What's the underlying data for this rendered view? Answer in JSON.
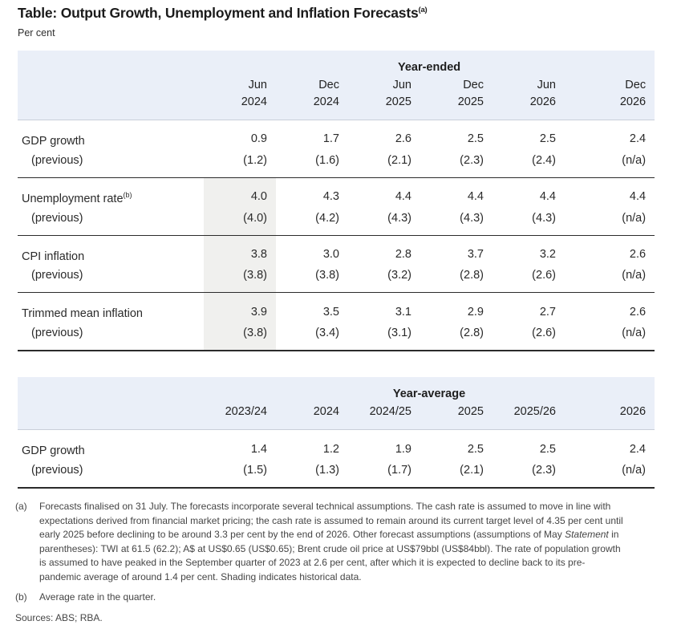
{
  "title": {
    "text": "Table: Output Growth, Unemployment and Inflation Forecasts",
    "superscript": "(a)"
  },
  "subtitle": "Per cent",
  "colors": {
    "header_bg": "#eaeff8",
    "shading": "#f0f0ee",
    "rule": "#2b2b2b"
  },
  "table_year_ended": {
    "group_header": "Year-ended",
    "previous_label": "(previous)",
    "columns": [
      {
        "month": "Jun",
        "year": "2024"
      },
      {
        "month": "Dec",
        "year": "2024"
      },
      {
        "month": "Jun",
        "year": "2025"
      },
      {
        "month": "Dec",
        "year": "2025"
      },
      {
        "month": "Jun",
        "year": "2026"
      },
      {
        "month": "Dec",
        "year": "2026"
      }
    ],
    "row_groups": [
      {
        "label": "GDP growth",
        "sup": "",
        "shaded_first": false,
        "values": [
          "0.9",
          "1.7",
          "2.6",
          "2.5",
          "2.5",
          "2.4"
        ],
        "previous": [
          "(1.2)",
          "(1.6)",
          "(2.1)",
          "(2.3)",
          "(2.4)",
          "(n/a)"
        ]
      },
      {
        "label": "Unemployment rate",
        "sup": "(b)",
        "shaded_first": true,
        "values": [
          "4.0",
          "4.3",
          "4.4",
          "4.4",
          "4.4",
          "4.4"
        ],
        "previous": [
          "(4.0)",
          "(4.2)",
          "(4.3)",
          "(4.3)",
          "(4.3)",
          "(n/a)"
        ]
      },
      {
        "label": "CPI inflation",
        "sup": "",
        "shaded_first": true,
        "values": [
          "3.8",
          "3.0",
          "2.8",
          "3.7",
          "3.2",
          "2.6"
        ],
        "previous": [
          "(3.8)",
          "(3.8)",
          "(3.2)",
          "(2.8)",
          "(2.6)",
          "(n/a)"
        ]
      },
      {
        "label": "Trimmed mean inflation",
        "sup": "",
        "shaded_first": true,
        "values": [
          "3.9",
          "3.5",
          "3.1",
          "2.9",
          "2.7",
          "2.6"
        ],
        "previous": [
          "(3.8)",
          "(3.4)",
          "(3.1)",
          "(2.8)",
          "(2.6)",
          "(n/a)"
        ]
      }
    ]
  },
  "table_year_average": {
    "group_header": "Year-average",
    "previous_label": "(previous)",
    "columns": [
      "2023/24",
      "2024",
      "2024/25",
      "2025",
      "2025/26",
      "2026"
    ],
    "row_groups": [
      {
        "label": "GDP growth",
        "sup": "",
        "shaded_first": false,
        "values": [
          "1.4",
          "1.2",
          "1.9",
          "2.5",
          "2.5",
          "2.4"
        ],
        "previous": [
          "(1.5)",
          "(1.3)",
          "(1.7)",
          "(2.1)",
          "(2.3)",
          "(n/a)"
        ]
      }
    ]
  },
  "footnotes": {
    "a": {
      "marker": "(a)",
      "text_before_italic": "Forecasts finalised on 31 July. The forecasts incorporate several technical assumptions. The cash rate is assumed to move in line with expectations derived from financial market pricing; the cash rate is assumed to remain around its current target level of 4.35 per cent until early 2025 before declining to be around 3.3 per cent by the end of 2026. Other forecast assumptions (assumptions of May ",
      "italic": "Statement",
      "text_after_italic": " in parentheses): TWI at 61.5 (62.2); A$ at US$0.65 (US$0.65); Brent crude oil price at US$79bbl (US$84bbl). The rate of population growth is assumed to have peaked in the September quarter of 2023 at 2.6 per cent, after which it is expected to decline back to its pre-pandemic average of around 1.4 per cent. Shading indicates historical data."
    },
    "b": {
      "marker": "(b)",
      "text": "Average rate in the quarter."
    }
  },
  "sources": "Sources: ABS; RBA."
}
